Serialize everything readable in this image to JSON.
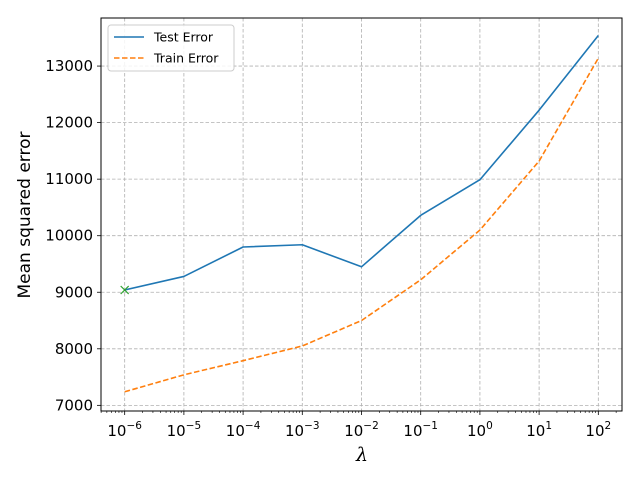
{
  "chart_data": {
    "type": "line",
    "title": "",
    "xlabel": "λ",
    "ylabel": "Mean squared error",
    "x_scale": "log",
    "x": [
      1e-06,
      1e-05,
      0.0001,
      0.001,
      0.01,
      0.1,
      1,
      10,
      100
    ],
    "x_tick_exponents": [
      "−6",
      "−5",
      "−4",
      "−3",
      "−2",
      "−1",
      "0",
      "1",
      "2"
    ],
    "x_tick_base": "10",
    "y_ticks": [
      7000,
      8000,
      9000,
      10000,
      11000,
      12000,
      13000
    ],
    "y_tick_labels": [
      "7000",
      "8000",
      "9000",
      "10000",
      "11000",
      "12000",
      "13000"
    ],
    "ylim": [
      6900,
      13850
    ],
    "xlim_exp": [
      -6.4,
      2.4
    ],
    "grid": true,
    "legend_position": "upper-left",
    "series": [
      {
        "name": "Test Error",
        "style": "solid",
        "color": "#1f77b4",
        "values": [
          9040,
          9280,
          9800,
          9840,
          9450,
          10360,
          10990,
          12220,
          13540
        ]
      },
      {
        "name": "Train Error",
        "style": "dashed",
        "color": "#ff7f0e",
        "values": [
          7240,
          7540,
          7790,
          8050,
          8500,
          9220,
          10100,
          11320,
          13140
        ]
      }
    ],
    "markers": [
      {
        "x": 1e-06,
        "y": 9040,
        "symbol": "x",
        "color": "#2ca02c"
      }
    ]
  }
}
